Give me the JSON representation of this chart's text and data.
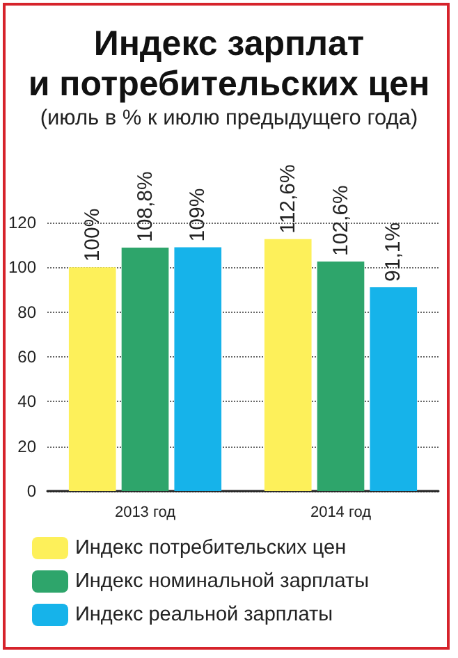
{
  "chart_data": {
    "type": "bar",
    "title": "Индекс зарплат\nи потребительских цен",
    "subtitle": "(июль в % к июлю предыдущего года)",
    "categories": [
      "2013 год",
      "2014 год"
    ],
    "series": [
      {
        "name": "Индекс потребительских цен",
        "color": "#fdf05a",
        "values": [
          100,
          112.6
        ],
        "value_labels": [
          "100%",
          "112,6%"
        ]
      },
      {
        "name": "Индекс номинальной зарплаты",
        "color": "#2ea56b",
        "values": [
          108.8,
          102.6
        ],
        "value_labels": [
          "108,8%",
          "102,6%"
        ]
      },
      {
        "name": "Индекс реальной зарплаты",
        "color": "#16b3ea",
        "values": [
          109,
          91.1
        ],
        "value_labels": [
          "109%",
          "91,1%"
        ]
      }
    ],
    "ylim": [
      0,
      120
    ],
    "yticks": [
      0,
      20,
      40,
      60,
      80,
      100,
      120
    ],
    "grid": "y",
    "legend": "bottom"
  }
}
